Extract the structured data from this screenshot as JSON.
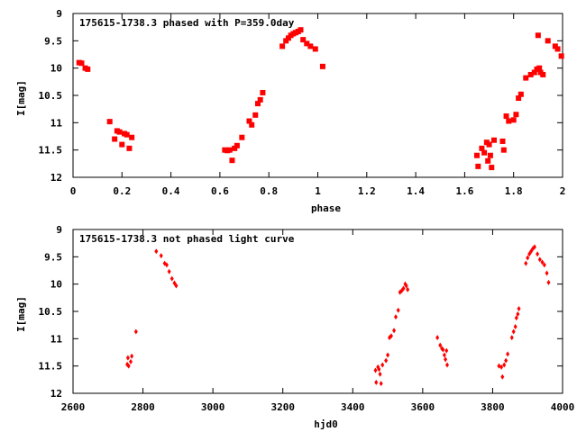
{
  "chart_data": [
    {
      "type": "scatter",
      "title": "175615-1738.3 phased with P=359.0day",
      "xlabel": "phase",
      "ylabel": "I[mag]",
      "xlim": [
        0,
        2
      ],
      "ylim": [
        12,
        9
      ],
      "y_inverted": true,
      "xticks": [
        "0",
        "0.2",
        "0.4",
        "0.6",
        "0.8",
        "1",
        "1.2",
        "1.4",
        "1.6",
        "1.8",
        "2"
      ],
      "yticks": [
        "9",
        "9.5",
        "10",
        "10.5",
        "11",
        "11.5",
        "12"
      ],
      "grid": false,
      "marker_color": "#ff0000",
      "marker": "filled-square",
      "points": [
        [
          0.025,
          9.9
        ],
        [
          0.035,
          9.91
        ],
        [
          0.05,
          10.0
        ],
        [
          0.06,
          10.02
        ],
        [
          0.15,
          10.98
        ],
        [
          0.17,
          11.3
        ],
        [
          0.18,
          11.15
        ],
        [
          0.19,
          11.17
        ],
        [
          0.2,
          11.4
        ],
        [
          0.21,
          11.2
        ],
        [
          0.22,
          11.22
        ],
        [
          0.23,
          11.47
        ],
        [
          0.24,
          11.27
        ],
        [
          0.62,
          11.5
        ],
        [
          0.63,
          11.51
        ],
        [
          0.64,
          11.5
        ],
        [
          0.65,
          11.69
        ],
        [
          0.66,
          11.47
        ],
        [
          0.67,
          11.42
        ],
        [
          0.69,
          11.27
        ],
        [
          0.72,
          10.97
        ],
        [
          0.73,
          11.04
        ],
        [
          0.745,
          10.86
        ],
        [
          0.755,
          10.65
        ],
        [
          0.765,
          10.58
        ],
        [
          0.775,
          10.45
        ],
        [
          0.855,
          9.6
        ],
        [
          0.87,
          9.5
        ],
        [
          0.88,
          9.45
        ],
        [
          0.89,
          9.4
        ],
        [
          0.9,
          9.37
        ],
        [
          0.91,
          9.35
        ],
        [
          0.92,
          9.33
        ],
        [
          0.93,
          9.3
        ],
        [
          0.94,
          9.48
        ],
        [
          0.955,
          9.55
        ],
        [
          0.97,
          9.6
        ],
        [
          0.99,
          9.65
        ],
        [
          1.02,
          9.97
        ],
        [
          1.65,
          11.6
        ],
        [
          1.655,
          11.8
        ],
        [
          1.67,
          11.47
        ],
        [
          1.68,
          11.55
        ],
        [
          1.69,
          11.36
        ],
        [
          1.695,
          11.7
        ],
        [
          1.7,
          11.4
        ],
        [
          1.705,
          11.6
        ],
        [
          1.71,
          11.82
        ],
        [
          1.72,
          11.32
        ],
        [
          1.755,
          11.34
        ],
        [
          1.76,
          11.5
        ],
        [
          1.77,
          10.88
        ],
        [
          1.78,
          10.97
        ],
        [
          1.8,
          10.95
        ],
        [
          1.81,
          10.85
        ],
        [
          1.82,
          10.55
        ],
        [
          1.83,
          10.48
        ],
        [
          1.85,
          10.18
        ],
        [
          1.87,
          10.12
        ],
        [
          1.885,
          10.08
        ],
        [
          1.895,
          10.02
        ],
        [
          1.905,
          10.0
        ],
        [
          1.91,
          10.08
        ],
        [
          1.92,
          10.12
        ],
        [
          1.9,
          9.4
        ],
        [
          1.94,
          9.5
        ],
        [
          1.97,
          9.6
        ],
        [
          1.98,
          9.65
        ],
        [
          1.995,
          9.78
        ]
      ]
    },
    {
      "type": "scatter",
      "title": "175615-1738.3 not phased light curve",
      "xlabel": "hjd0",
      "ylabel": "I[mag]",
      "xlim": [
        2600,
        4000
      ],
      "ylim": [
        12,
        9
      ],
      "y_inverted": true,
      "xticks": [
        "2600",
        "2800",
        "3000",
        "3200",
        "3400",
        "3600",
        "3800",
        "4000"
      ],
      "yticks": [
        "9",
        "9.5",
        "10",
        "10.5",
        "11",
        "11.5",
        "12"
      ],
      "grid": false,
      "marker_color": "#ff0000",
      "marker": "small-diamond",
      "points": [
        [
          2755,
          11.47
        ],
        [
          2757,
          11.35
        ],
        [
          2759,
          11.5
        ],
        [
          2765,
          11.42
        ],
        [
          2768,
          11.32
        ],
        [
          2780,
          10.87
        ],
        [
          2838,
          9.4
        ],
        [
          2852,
          9.48
        ],
        [
          2862,
          9.62
        ],
        [
          2868,
          9.65
        ],
        [
          2875,
          9.77
        ],
        [
          2883,
          9.9
        ],
        [
          2890,
          9.98
        ],
        [
          2895,
          10.03
        ],
        [
          3465,
          11.58
        ],
        [
          3467,
          11.8
        ],
        [
          3472,
          11.52
        ],
        [
          3475,
          11.56
        ],
        [
          3478,
          11.65
        ],
        [
          3481,
          11.82
        ],
        [
          3485,
          11.48
        ],
        [
          3495,
          11.4
        ],
        [
          3500,
          11.3
        ],
        [
          3505,
          10.98
        ],
        [
          3510,
          10.95
        ],
        [
          3518,
          10.85
        ],
        [
          3523,
          10.6
        ],
        [
          3530,
          10.48
        ],
        [
          3535,
          10.15
        ],
        [
          3540,
          10.12
        ],
        [
          3545,
          10.08
        ],
        [
          3550,
          10.0
        ],
        [
          3553,
          10.03
        ],
        [
          3557,
          10.1
        ],
        [
          3642,
          10.98
        ],
        [
          3650,
          11.12
        ],
        [
          3655,
          11.18
        ],
        [
          3658,
          11.2
        ],
        [
          3662,
          11.3
        ],
        [
          3665,
          11.38
        ],
        [
          3668,
          11.22
        ],
        [
          3670,
          11.48
        ],
        [
          3818,
          11.5
        ],
        [
          3825,
          11.52
        ],
        [
          3828,
          11.7
        ],
        [
          3833,
          11.48
        ],
        [
          3838,
          11.4
        ],
        [
          3843,
          11.28
        ],
        [
          3855,
          10.98
        ],
        [
          3860,
          10.87
        ],
        [
          3865,
          10.78
        ],
        [
          3868,
          10.62
        ],
        [
          3872,
          10.55
        ],
        [
          3875,
          10.45
        ],
        [
          3895,
          9.62
        ],
        [
          3900,
          9.52
        ],
        [
          3905,
          9.45
        ],
        [
          3910,
          9.4
        ],
        [
          3915,
          9.35
        ],
        [
          3920,
          9.32
        ],
        [
          3928,
          9.45
        ],
        [
          3935,
          9.55
        ],
        [
          3942,
          9.6
        ],
        [
          3948,
          9.65
        ],
        [
          3955,
          9.8
        ],
        [
          3960,
          9.97
        ]
      ]
    }
  ]
}
